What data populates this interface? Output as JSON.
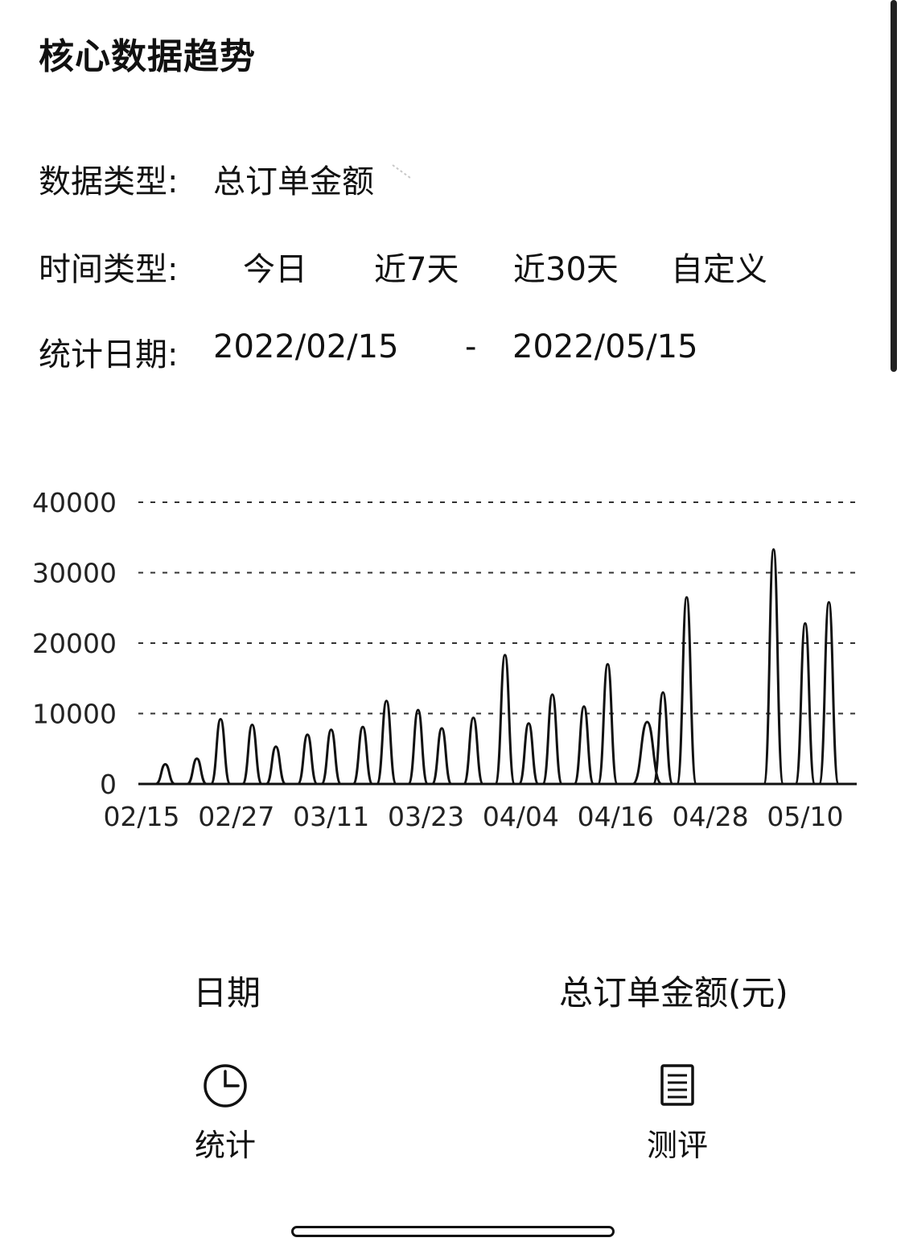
{
  "header": {
    "title": "核心数据趋势"
  },
  "filters": {
    "data_type": {
      "label": "数据类型:",
      "value": "总订单金额"
    },
    "time_type": {
      "label": "时间类型:",
      "options": [
        "今日",
        "近7天",
        "近30天",
        "自定义"
      ]
    },
    "stat_date": {
      "label": "统计日期:",
      "start": "2022/02/15",
      "separator": "-",
      "end": "2022/05/15"
    }
  },
  "chart_data": {
    "type": "line",
    "title": "",
    "xlabel": "",
    "ylabel": "",
    "ylim": [
      0,
      40000
    ],
    "y_ticks": [
      0,
      10000,
      20000,
      30000,
      40000
    ],
    "x_ticks": [
      "02/15",
      "02/27",
      "03/11",
      "03/23",
      "04/04",
      "04/16",
      "04/28",
      "05/10"
    ],
    "grid": "horizontal dashed",
    "line_color": "#111111",
    "x_range": [
      "02/15",
      "05/15"
    ],
    "peaks": [
      {
        "date": "02/18",
        "value": 2800
      },
      {
        "date": "02/22",
        "value": 3600
      },
      {
        "date": "02/25",
        "value": 9200
      },
      {
        "date": "03/01",
        "value": 8400
      },
      {
        "date": "03/04",
        "value": 5300
      },
      {
        "date": "03/08",
        "value": 7000
      },
      {
        "date": "03/11",
        "value": 7700
      },
      {
        "date": "03/15",
        "value": 8100
      },
      {
        "date": "03/18",
        "value": 11800
      },
      {
        "date": "03/22",
        "value": 10500
      },
      {
        "date": "03/25",
        "value": 7900
      },
      {
        "date": "03/29",
        "value": 9400
      },
      {
        "date": "04/02",
        "value": 18300
      },
      {
        "date": "04/05",
        "value": 8600
      },
      {
        "date": "04/08",
        "value": 12700
      },
      {
        "date": "04/12",
        "value": 11000
      },
      {
        "date": "04/15",
        "value": 17000
      },
      {
        "date": "04/20",
        "value": 8800
      },
      {
        "date": "04/22",
        "value": 13000
      },
      {
        "date": "04/25",
        "value": 26500
      },
      {
        "date": "05/06",
        "value": 33300
      },
      {
        "date": "05/10",
        "value": 22800
      },
      {
        "date": "05/13",
        "value": 25800
      }
    ]
  },
  "table": {
    "col_date": "日期",
    "col_amount": "总订单金额(元)"
  },
  "tabbar": {
    "stats": {
      "label": "统计",
      "icon": "clock-icon"
    },
    "review": {
      "label": "测评",
      "icon": "document-list-icon"
    }
  }
}
